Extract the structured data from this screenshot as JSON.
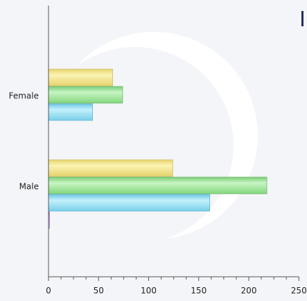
{
  "chart_data": {
    "type": "bar",
    "orientation": "horizontal",
    "categories": [
      "Female",
      "Male"
    ],
    "series": [
      {
        "values": [
          64,
          124
        ],
        "color": "#f3e48a"
      },
      {
        "values": [
          74,
          218
        ],
        "color": "#9fe59b"
      },
      {
        "values": [
          44,
          161
        ],
        "color": "#93dcf3"
      },
      {
        "values": [
          0,
          1
        ],
        "color": "#b9a0d6"
      }
    ],
    "x_ticks": [
      "0",
      "50",
      "100",
      "150",
      "200",
      "250"
    ],
    "xlim": [
      0,
      250
    ],
    "grid": false,
    "legend": "none",
    "title_fragment": "I"
  }
}
